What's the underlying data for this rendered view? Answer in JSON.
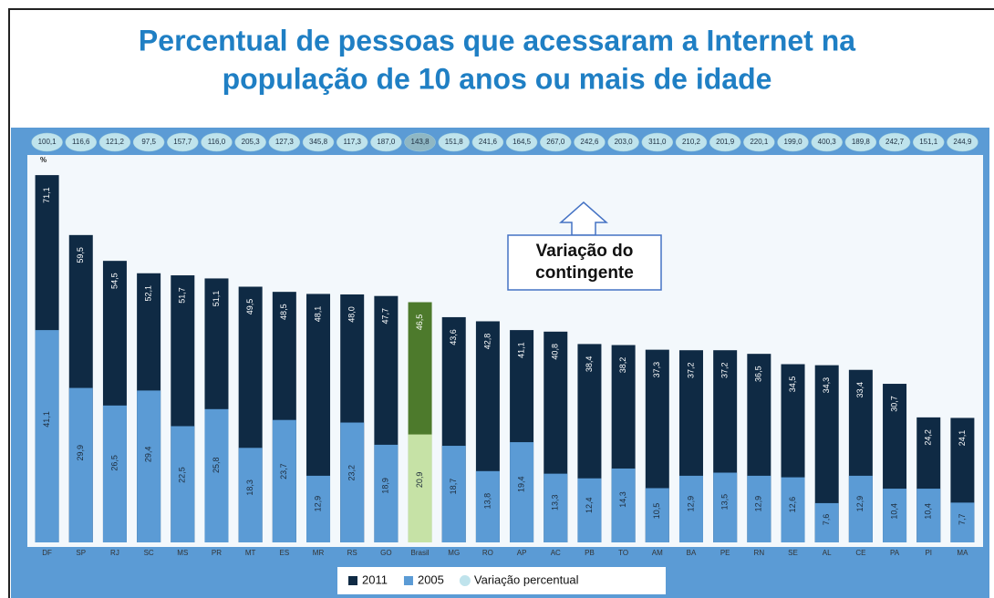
{
  "chart_data": {
    "type": "bar",
    "title": "Percentual de pessoas que acessaram a Internet na",
    "subtitle": "população de 10 anos ou mais de idade",
    "y_label": "%",
    "annotation": [
      "Variação do",
      "contingente"
    ],
    "categories": [
      "DF",
      "SP",
      "RJ",
      "SC",
      "MS",
      "PR",
      "MT",
      "ES",
      "MR",
      "RS",
      "GO",
      "Brasil",
      "MG",
      "RO",
      "AP",
      "AC",
      "PB",
      "TO",
      "AM",
      "BA",
      "PE",
      "RN",
      "SE",
      "AL",
      "CE",
      "PA",
      "PI",
      "MA"
    ],
    "highlight": "Brasil",
    "ylim": [
      0,
      75
    ],
    "legend": "bottom",
    "series": [
      {
        "name": "2011",
        "color": "#0f2a44",
        "highlight_color": "#4d7a2c",
        "values": [
          71.1,
          59.5,
          54.5,
          52.1,
          51.7,
          51.1,
          49.5,
          48.5,
          48.1,
          48.0,
          47.7,
          46.5,
          43.6,
          42.8,
          41.1,
          40.8,
          38.4,
          38.2,
          37.3,
          37.2,
          37.2,
          36.5,
          34.5,
          34.3,
          33.4,
          30.7,
          24.2,
          24.1
        ],
        "value_labels": [
          "71,1",
          "59,5",
          "54,5",
          "52,1",
          "51,7",
          "51,1",
          "49,5",
          "48,5",
          "48,1",
          "48,0",
          "47,7",
          "46,5",
          "43,6",
          "42,8",
          "41,1",
          "40,8",
          "38,4",
          "38,2",
          "37,3",
          "37,2",
          "37,2",
          "36,5",
          "34,5",
          "34,3",
          "33,4",
          "30,7",
          "24,2",
          "24,1"
        ]
      },
      {
        "name": "2005",
        "color": "#5b9bd5",
        "highlight_color": "#c6e2a6",
        "values": [
          41.1,
          29.9,
          26.5,
          29.4,
          22.5,
          25.8,
          18.3,
          23.7,
          12.9,
          23.2,
          18.9,
          20.9,
          18.7,
          13.8,
          19.4,
          13.3,
          12.4,
          14.3,
          10.5,
          12.9,
          13.5,
          12.9,
          12.6,
          7.6,
          12.9,
          10.4,
          10.4,
          7.7
        ],
        "value_labels": [
          "41,1",
          "29,9",
          "26,5",
          "29,4",
          "22,5",
          "25,8",
          "18,3",
          "23,7",
          "12,9",
          "23,2",
          "18,9",
          "20,9",
          "18,7",
          "13,8",
          "19,4",
          "13,3",
          "12,4",
          "14,3",
          "10,5",
          "12,9",
          "13,5",
          "12,9",
          "12,6",
          "7,6",
          "12,9",
          "10,4",
          "10,4",
          "7,7"
        ]
      },
      {
        "name": "Variação percentual",
        "color": "#bfe3ec",
        "marker": "circle",
        "highlight_color": "#8fb7c4",
        "values": [
          100.1,
          116.6,
          121.2,
          97.5,
          157.7,
          116.0,
          205.3,
          127.3,
          345.8,
          117.3,
          187.0,
          143.8,
          151.8,
          241.6,
          164.5,
          267.0,
          242.6,
          203.0,
          311.0,
          210.2,
          201.9,
          220.1,
          199.0,
          400.3,
          189.8,
          242.7,
          151.1,
          244.9
        ],
        "value_labels": [
          "100,1",
          "116,6",
          "121,2",
          "97,5",
          "157,7",
          "116,0",
          "205,3",
          "127,3",
          "345,8",
          "117,3",
          "187,0",
          "143,8",
          "151,8",
          "241,6",
          "164,5",
          "267,0",
          "242,6",
          "203,0",
          "311,0",
          "210,2",
          "201,9",
          "220,1",
          "199,0",
          "400,3",
          "189,8",
          "242,7",
          "151,1",
          "244,9"
        ]
      }
    ]
  }
}
